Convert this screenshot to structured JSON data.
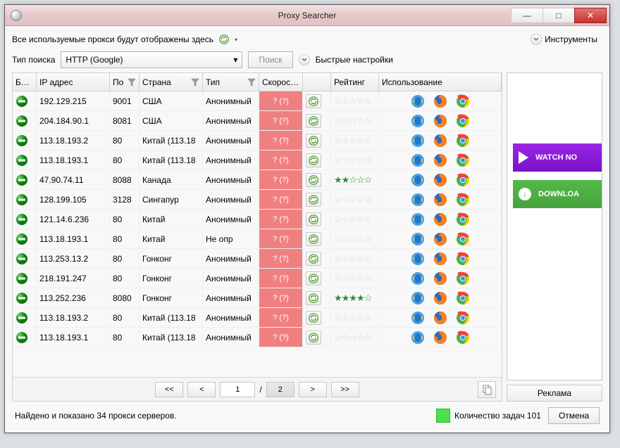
{
  "window": {
    "title": "Proxy Searcher",
    "controls": {
      "min": "—",
      "max": "□",
      "close": "✕"
    }
  },
  "message_bar": {
    "text": "Все используемые прокси будут отображены здесь"
  },
  "tools_menu": {
    "label": "Инструменты"
  },
  "search_type": {
    "label": "Тип поиска",
    "selected": "HTTP (Google)",
    "search_button": "Поиск",
    "quick_settings": "Быстрые настройки"
  },
  "columns": {
    "block": "Блок",
    "ip": "IP адрес",
    "port": "По",
    "country": "Страна",
    "type": "Тип",
    "speed": "Скорость (о",
    "rating": "Рейтинг",
    "usage": "Использование"
  },
  "speed_unknown": "? (?)",
  "rows": [
    {
      "ip": "192.129.215",
      "port": "9001",
      "country": "США",
      "type": "Анонимный",
      "rating": 0
    },
    {
      "ip": "204.184.90.1",
      "port": "8081",
      "country": "США",
      "type": "Анонимный",
      "rating": 0
    },
    {
      "ip": "113.18.193.2",
      "port": "80",
      "country": "Китай (113.18",
      "type": "Анонимный",
      "rating": 0
    },
    {
      "ip": "113.18.193.1",
      "port": "80",
      "country": "Китай (113.18",
      "type": "Анонимный",
      "rating": 0
    },
    {
      "ip": "47.90.74.11",
      "port": "8088",
      "country": "Канада",
      "type": "Анонимный",
      "rating": 2
    },
    {
      "ip": "128.199.105",
      "port": "3128",
      "country": "Сингапур",
      "type": "Анонимный",
      "rating": 0
    },
    {
      "ip": "121.14.6.236",
      "port": "80",
      "country": "Китай",
      "type": "Анонимный",
      "rating": 0
    },
    {
      "ip": "113.18.193.1",
      "port": "80",
      "country": "Китай",
      "type": "Не опр",
      "rating": 0
    },
    {
      "ip": "113.253.13.2",
      "port": "80",
      "country": "Гонконг",
      "type": "Анонимный",
      "rating": 0
    },
    {
      "ip": "218.191.247",
      "port": "80",
      "country": "Гонконг",
      "type": "Анонимный",
      "rating": 0
    },
    {
      "ip": "113.252.236",
      "port": "8080",
      "country": "Гонконг",
      "type": "Анонимный",
      "rating": 4
    },
    {
      "ip": "113.18.193.2",
      "port": "80",
      "country": "Китай (113.18",
      "type": "Анонимный",
      "rating": 0
    },
    {
      "ip": "113.18.193.1",
      "port": "80",
      "country": "Китай (113.18",
      "type": "Анонимный",
      "rating": 0
    }
  ],
  "pager": {
    "first": "<<",
    "prev": "<",
    "page": "1",
    "sep": "/",
    "total": "2",
    "next": ">",
    "last": ">>"
  },
  "ads": {
    "watch": "WATCH NO",
    "download": "DOWNLOA",
    "label": "Реклама"
  },
  "status": {
    "found_text": "Найдено и показано 34 прокси серверов.",
    "tasks": "Количество задач 101",
    "cancel": "Отмена"
  },
  "colors": {
    "titlebar_bg": "#e7c9cc",
    "close_bg": "#c83232",
    "speed_bg": "#f08080",
    "task_green": "#4de04d",
    "ad_purple": "#8318d4",
    "ad_green": "#4aae40"
  }
}
